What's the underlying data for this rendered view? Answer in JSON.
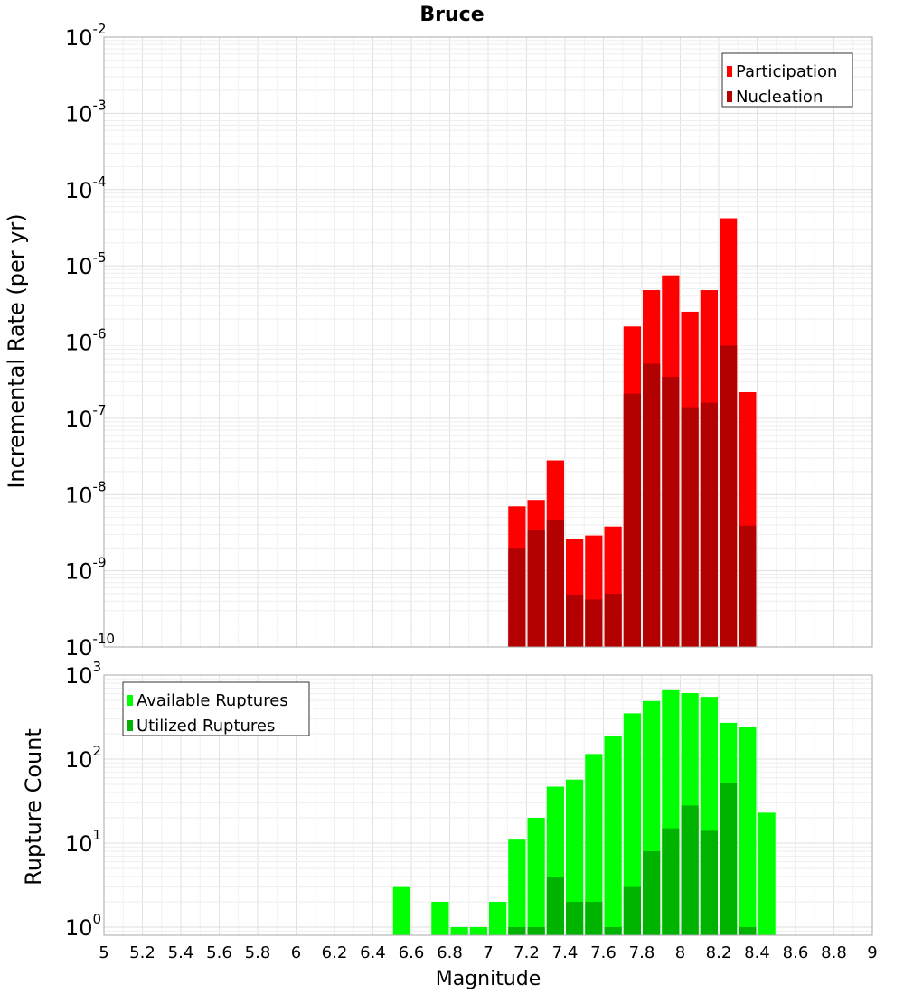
{
  "title": "Bruce",
  "xlabel": "Magnitude",
  "colors": {
    "participation": "#ff0000",
    "nucleation": "#b30000",
    "available": "#00ff00",
    "utilized": "#00b300"
  },
  "chart_data": [
    {
      "type": "bar",
      "title": "Bruce",
      "ylabel": "Incremental Rate (per yr)",
      "xlabel": "Magnitude",
      "yscale": "log",
      "ylim": [
        1e-10,
        0.01
      ],
      "xlim": [
        5,
        9
      ],
      "grid": true,
      "legend_position": "top-right",
      "bin_width": 0.1,
      "x": [
        7.15,
        7.25,
        7.35,
        7.45,
        7.55,
        7.65,
        7.75,
        7.85,
        7.95,
        8.05,
        8.15,
        8.25,
        8.35
      ],
      "series": [
        {
          "name": "Participation",
          "values": [
            7e-09,
            8.5e-09,
            2.8e-08,
            2.6e-09,
            2.9e-09,
            3.8e-09,
            1.6e-06,
            4.8e-06,
            7.5e-06,
            2.5e-06,
            4.8e-06,
            4.2e-05,
            2.2e-07
          ]
        },
        {
          "name": "Nucleation",
          "values": [
            2e-09,
            3.4e-09,
            4.6e-09,
            4.8e-10,
            4.2e-10,
            5e-10,
            2.1e-07,
            5.2e-07,
            3.5e-07,
            1.4e-07,
            1.6e-07,
            9e-07,
            3.9e-09
          ]
        }
      ]
    },
    {
      "type": "bar",
      "ylabel": "Rupture Count",
      "xlabel": "Magnitude",
      "yscale": "log",
      "ylim": [
        0.8,
        1000
      ],
      "xlim": [
        5,
        9
      ],
      "grid": true,
      "legend_position": "top-left",
      "bin_width": 0.1,
      "x": [
        6.55,
        6.65,
        6.75,
        6.85,
        6.95,
        7.05,
        7.15,
        7.25,
        7.35,
        7.45,
        7.55,
        7.65,
        7.75,
        7.85,
        7.95,
        8.05,
        8.15,
        8.25,
        8.35,
        8.45
      ],
      "series": [
        {
          "name": "Available Ruptures",
          "values": [
            3,
            0,
            2,
            1,
            1,
            2,
            11,
            20,
            47,
            57,
            115,
            190,
            350,
            490,
            660,
            610,
            550,
            270,
            240,
            23
          ]
        },
        {
          "name": "Utilized Ruptures",
          "values": [
            0,
            0,
            0,
            0,
            0,
            0,
            1,
            1,
            4,
            2,
            2,
            1,
            3,
            8,
            15,
            28,
            14,
            52,
            1,
            0
          ]
        }
      ]
    }
  ],
  "x_ticks": [
    "5",
    "5.2",
    "5.4",
    "5.6",
    "5.8",
    "6",
    "6.2",
    "6.4",
    "6.6",
    "6.8",
    "7",
    "7.2",
    "7.4",
    "7.6",
    "7.8",
    "8",
    "8.2",
    "8.4",
    "8.6",
    "8.8",
    "9"
  ],
  "top_y_ticks": [
    {
      "base": "10",
      "exp": "-2"
    },
    {
      "base": "10",
      "exp": "-3"
    },
    {
      "base": "10",
      "exp": "-4"
    },
    {
      "base": "10",
      "exp": "-5"
    },
    {
      "base": "10",
      "exp": "-6"
    },
    {
      "base": "10",
      "exp": "-7"
    },
    {
      "base": "10",
      "exp": "-8"
    },
    {
      "base": "10",
      "exp": "-9"
    },
    {
      "base": "10",
      "exp": "-10"
    }
  ],
  "bottom_y_ticks": [
    {
      "base": "10",
      "exp": "3"
    },
    {
      "base": "10",
      "exp": "2"
    },
    {
      "base": "10",
      "exp": "1"
    },
    {
      "base": "10",
      "exp": "0"
    }
  ]
}
